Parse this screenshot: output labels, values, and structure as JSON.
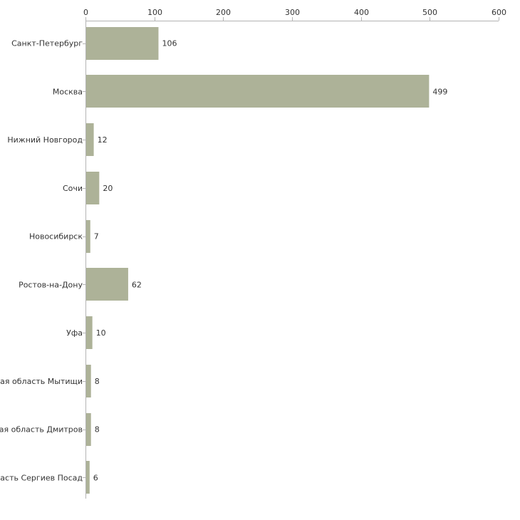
{
  "chart_data": {
    "type": "bar",
    "orientation": "horizontal",
    "title": "",
    "xlabel": "",
    "ylabel": "",
    "xlim": [
      0,
      600
    ],
    "ticks": [
      0,
      100,
      200,
      300,
      400,
      500,
      600
    ],
    "tick_labels": [
      "0",
      "100",
      "200",
      "300",
      "400",
      "500",
      "600"
    ],
    "categories": [
      "Санкт-Петербург",
      "Москва",
      "Нижний Новгород",
      "Сочи",
      "Новосибирск",
      "Ростов-на-Дону",
      "Уфа",
      "Московская область Мытищи",
      "Московская область Дмитров",
      "Московская область Сергиев Посад"
    ],
    "values": [
      106,
      499,
      12,
      20,
      7,
      62,
      10,
      8,
      8,
      6
    ],
    "value_labels": [
      "106",
      "499",
      "12",
      "20",
      "7",
      "62",
      "10",
      "8",
      "8",
      "6"
    ],
    "grid": false,
    "legend": "none"
  },
  "colors": {
    "bar": "#adb298",
    "axis": "#b4b4b4",
    "text": "#333333",
    "background": "#ffffff"
  }
}
